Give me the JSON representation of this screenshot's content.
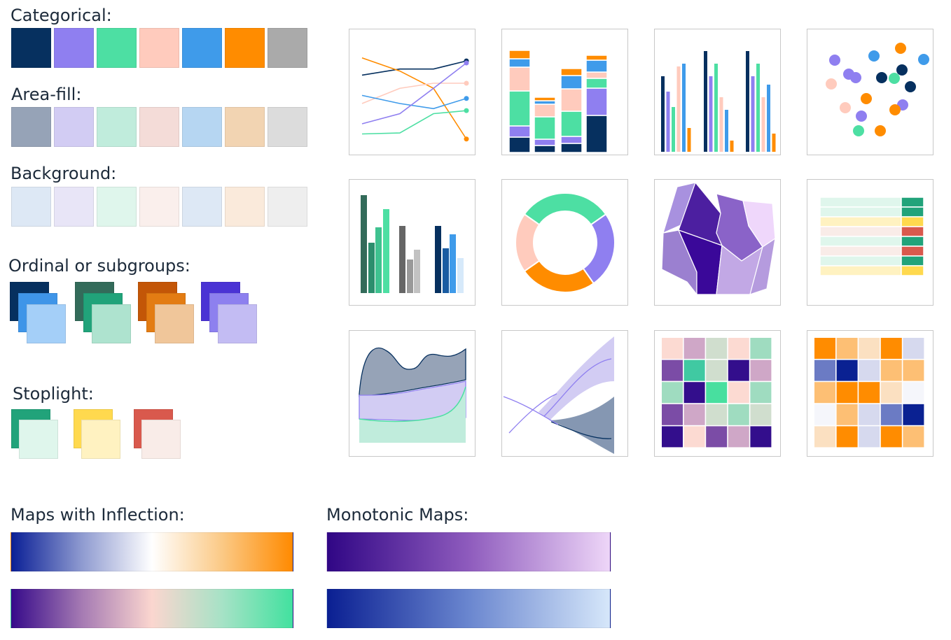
{
  "labels": {
    "categorical": "Categorical:",
    "area_fill": "Area-fill:",
    "background": "Background:",
    "ordinal": "Ordinal or subgroups:",
    "stoplight": "Stoplight:",
    "maps_inflection": "Maps with Inflection:",
    "monotonic_maps": "Monotonic Maps:"
  },
  "palettes": {
    "categorical": [
      "#06305f",
      "#8f7ff0",
      "#4ddfa3",
      "#ffcbbd",
      "#3f9bea",
      "#ff8c00",
      "#aaaaaa"
    ],
    "area_fill": [
      "#96a3b7",
      "#d2ccf3",
      "#c0ecdc",
      "#f4dcd8",
      "#b6d6f2",
      "#f2d4b2",
      "#dcdcdc"
    ],
    "background": [
      "#dde8f5",
      "#e8e5f7",
      "#dff6ec",
      "#faefec",
      "#dde8f5",
      "#faeadb",
      "#eeeeee"
    ],
    "ordinal_groups": [
      [
        "#06305f",
        "#3f95e8",
        "#a4cff8"
      ],
      [
        "#336b5a",
        "#21a37a",
        "#aee3cf"
      ],
      [
        "#c35607",
        "#e37c13",
        "#f0c69a"
      ],
      [
        "#4a33d4",
        "#8d80ef",
        "#c3bcf3"
      ]
    ],
    "stoplight": [
      [
        "#21a37a",
        "#dff6ec"
      ],
      [
        "#ffd94e",
        "#fff2c1"
      ],
      [
        "#d9594d",
        "#f9ece8"
      ]
    ],
    "maps_inflection": [
      [
        "#0a1f96",
        "#8e9ad0",
        "#ffffff",
        "#fbc985",
        "#ff8a00"
      ],
      [
        "#360a8a",
        "#a57ab3",
        "#fbd6cf",
        "#a6e2c6",
        "#42e19f"
      ]
    ],
    "monotonic_maps": [
      [
        "#300685",
        "#8e5bbd",
        "#eed6f8"
      ],
      [
        "#0a1f92",
        "#6a86cf",
        "#d6e7fa"
      ]
    ]
  },
  "chart_thumbnails": [
    {
      "type": "line",
      "series": [
        {
          "color": "#06305f",
          "values": [
            68,
            74,
            74,
            82
          ]
        },
        {
          "color": "#ff8c00",
          "values": [
            85,
            72,
            55,
            5
          ]
        },
        {
          "color": "#ffcbbd",
          "values": [
            40,
            55,
            60,
            60
          ]
        },
        {
          "color": "#3f9bea",
          "values": [
            48,
            40,
            35,
            45
          ]
        },
        {
          "color": "#8f7ff0",
          "values": [
            20,
            30,
            55,
            80
          ]
        },
        {
          "color": "#4ddfa3",
          "values": [
            10,
            11,
            30,
            33
          ]
        }
      ]
    },
    {
      "type": "stacked-bar"
    },
    {
      "type": "grouped-bar"
    },
    {
      "type": "scatter"
    },
    {
      "type": "ordinal-bar"
    },
    {
      "type": "donut",
      "values": [
        30,
        25,
        25,
        20
      ]
    },
    {
      "type": "map"
    },
    {
      "type": "table"
    },
    {
      "type": "area"
    },
    {
      "type": "bands"
    },
    {
      "type": "heatmap-categorical"
    },
    {
      "type": "heatmap-diverging"
    }
  ]
}
